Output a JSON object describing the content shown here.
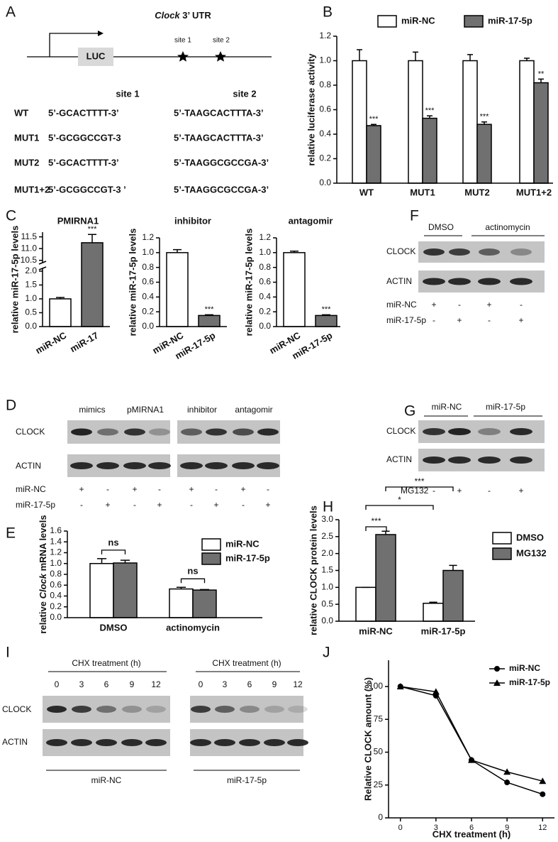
{
  "panel_labels": [
    "A",
    "B",
    "C",
    "D",
    "E",
    "F",
    "G",
    "H",
    "I",
    "J"
  ],
  "construct": {
    "gene": "Clock",
    "region": "3’ UTR",
    "reporter": "LUC",
    "sites": [
      "site 1",
      "site 2"
    ]
  },
  "sequences": {
    "header": [
      "site 1",
      "site 2"
    ],
    "rows": [
      [
        "WT",
        "5’-GCACTTTT-3’",
        "5’-TAAGCACTTTA-3’"
      ],
      [
        "MUT1",
        "5’-GCGGCCGT-3",
        "5’-TAAGCACTTTA-3’"
      ],
      [
        "MUT2",
        "5’-GCACTTTT-3’",
        "5’-TAAGGCGCCGA-3’"
      ],
      [
        "MUT1+2",
        "5’-GCGGCCGT-3 ’",
        "5’-TAAGGCGCCGA-3’"
      ]
    ]
  },
  "blot_d": {
    "groups": [
      "mimics",
      "pMIRNA1",
      "inhibitor",
      "antagomir"
    ],
    "rows": [
      "CLOCK",
      "ACTIN"
    ],
    "conditions": [
      {
        "name": "miR-NC",
        "signs": [
          "+",
          "-",
          "+",
          "-",
          "+",
          "-",
          "+",
          "-"
        ]
      },
      {
        "name": "miR-17-5p",
        "signs": [
          "-",
          "+",
          "-",
          "+",
          "-",
          "+",
          "-",
          "+"
        ]
      }
    ]
  },
  "blot_f": {
    "groups": [
      "DMSO",
      "actinomycin"
    ],
    "rows": [
      "CLOCK",
      "ACTIN"
    ],
    "conditions": [
      {
        "name": "miR-NC",
        "signs": [
          "+",
          "-",
          "+",
          "-"
        ]
      },
      {
        "name": "miR-17-5p",
        "signs": [
          "-",
          "+",
          "-",
          "+"
        ]
      }
    ]
  },
  "blot_g": {
    "groups": [
      "miR-NC",
      "miR-17-5p"
    ],
    "rows": [
      "CLOCK",
      "ACTIN"
    ],
    "conditions": [
      {
        "name": "MG132",
        "signs": [
          "-",
          "+",
          "-",
          "+"
        ]
      }
    ]
  },
  "blot_i": {
    "rows": [
      "CLOCK",
      "ACTIN"
    ],
    "panels": [
      {
        "heading": "CHX treatment (h)",
        "times": [
          0,
          3,
          6,
          9,
          12
        ],
        "group": "miR-NC"
      },
      {
        "heading": "CHX treatment (h)",
        "times": [
          0,
          3,
          6,
          9,
          12
        ],
        "group": "miR-17-5p"
      }
    ]
  },
  "chart_data": [
    {
      "type": "bar",
      "y_label": "relative luciferase activity",
      "categories": [
        "WT",
        "MUT1",
        "MUT2",
        "MUT1+2"
      ],
      "series": [
        {
          "name": "miR-NC",
          "color": "#ffffff",
          "values": [
            1.0,
            1.0,
            1.0,
            1.0
          ],
          "errors": [
            0.09,
            0.07,
            0.05,
            0.02
          ]
        },
        {
          "name": "miR-17-5p",
          "color": "#707070",
          "values": [
            0.47,
            0.53,
            0.48,
            0.82
          ],
          "errors": [
            0.01,
            0.02,
            0.02,
            0.03
          ],
          "annotations": [
            "***",
            "***",
            "***",
            "**"
          ]
        }
      ],
      "ylim": [
        0,
        1.2
      ],
      "yticks": [
        {
          "value": 0,
          "label": "0.0"
        },
        0.2,
        0.4,
        0.6,
        0.8,
        {
          "value": 1,
          "label": "1.0"
        },
        1.2
      ],
      "legend": "top"
    },
    {
      "type": "bar",
      "title": "PMIRNA1",
      "y_label": "relative miR-17-5p levels",
      "categories": [
        "miR-NC",
        "miR-17"
      ],
      "values": [
        1.0,
        11.25
      ],
      "errors": [
        0.05,
        0.35
      ],
      "colors": [
        "#ffffff",
        "#707070"
      ],
      "annotations": [
        null,
        "***"
      ],
      "ylim": [
        0,
        11.7
      ],
      "axis_break": [
        2.1,
        10.4
      ],
      "yticks": [
        {
          "value": 0,
          "label": "0.0"
        },
        0.5,
        {
          "value": 1,
          "label": "1.0"
        },
        1.5,
        {
          "value": 2,
          "label": "2.0"
        },
        10.5,
        {
          "value": 11,
          "label": "11.0"
        },
        11.5
      ]
    },
    {
      "type": "bar",
      "title": "inhibitor",
      "y_label": "relative miR-17-5p levels",
      "categories": [
        "miR-NC",
        "miR-17-5p"
      ],
      "values": [
        1.0,
        0.15
      ],
      "errors": [
        0.04,
        0.01
      ],
      "colors": [
        "#ffffff",
        "#707070"
      ],
      "annotations": [
        null,
        "***"
      ],
      "ylim": [
        0,
        1.2
      ],
      "yticks": [
        {
          "value": 0,
          "label": "0.0"
        },
        0.2,
        0.4,
        0.6,
        0.8,
        {
          "value": 1,
          "label": "1.0"
        },
        1.2
      ]
    },
    {
      "type": "bar",
      "title": "antagomir",
      "y_label": "relative miR-17-5p levels",
      "categories": [
        "miR-NC",
        "miR-17-5p"
      ],
      "values": [
        1.0,
        0.15
      ],
      "errors": [
        0.02,
        0.01
      ],
      "colors": [
        "#ffffff",
        "#707070"
      ],
      "annotations": [
        null,
        "***"
      ],
      "ylim": [
        0,
        1.2
      ],
      "yticks": [
        {
          "value": 0,
          "label": "0.0"
        },
        0.2,
        0.4,
        0.6,
        0.8,
        {
          "value": 1,
          "label": "1.0"
        },
        1.2
      ]
    },
    {
      "type": "bar",
      "y_label": [
        "relative",
        "Clock",
        "mRNA levels"
      ],
      "categories": [
        "DMSO",
        "actinomycin"
      ],
      "series": [
        {
          "name": "miR-NC",
          "color": "#ffffff",
          "values": [
            1.0,
            0.53
          ],
          "errors": [
            0.09,
            0.03
          ]
        },
        {
          "name": "miR-17-5p",
          "color": "#707070",
          "values": [
            1.01,
            0.51
          ],
          "errors": [
            0.05,
            0.01
          ]
        }
      ],
      "group_annotations": [
        "ns",
        "ns"
      ],
      "ylim": [
        0,
        1.6
      ],
      "yticks": [
        {
          "value": 0,
          "label": "0.0"
        },
        0.2,
        0.4,
        0.6,
        0.8,
        {
          "value": 1,
          "label": "1.0"
        },
        1.2,
        1.4,
        1.6
      ],
      "legend": "top right"
    },
    {
      "type": "bar",
      "y_label": "relative CLOCK protein levels",
      "categories": [
        "miR-NC",
        "miR-17-5p"
      ],
      "series": [
        {
          "name": "DMSO",
          "color": "#ffffff",
          "values": [
            1.0,
            0.53
          ],
          "errors": [
            0,
            0.03
          ]
        },
        {
          "name": "MG132",
          "color": "#707070",
          "values": [
            2.56,
            1.5
          ],
          "errors": [
            0.1,
            0.15
          ]
        }
      ],
      "comparison_labels": [
        "***",
        "*",
        "***"
      ],
      "ylim": [
        0,
        3
      ],
      "yticks": [
        {
          "value": 0,
          "label": "0.0"
        },
        0.5,
        {
          "value": 1,
          "label": "1.0"
        },
        1.5,
        {
          "value": 2,
          "label": "2.0"
        },
        2.5,
        {
          "value": 3,
          "label": "3.0"
        }
      ],
      "legend": "right"
    },
    {
      "type": "line",
      "y_label": "Relative CLOCK amount (%)",
      "x_label": "CHX treatment (h)",
      "x": [
        0,
        3,
        6,
        9,
        12
      ],
      "series": [
        {
          "name": "miR-NC",
          "color": "#000000",
          "marker": "circle",
          "values": [
            100,
            93,
            44,
            27,
            18
          ]
        },
        {
          "name": "miR-17-5p",
          "color": "#000000",
          "marker": "triangle",
          "values": [
            100,
            96,
            44,
            35,
            28
          ]
        }
      ],
      "xlim": [
        -1,
        13
      ],
      "xticks": [
        0,
        3,
        6,
        9,
        12
      ],
      "ylim": [
        0,
        120
      ],
      "yticks": [
        0,
        25,
        50,
        75,
        100
      ],
      "legend": "top right"
    }
  ]
}
